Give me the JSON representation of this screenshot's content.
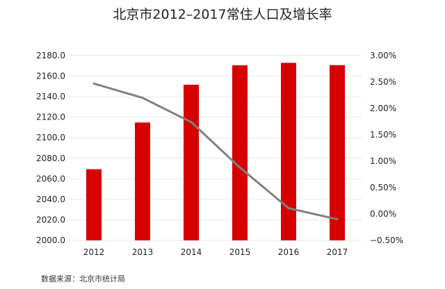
{
  "colors": {
    "bar": "#d60000",
    "line": "#808080",
    "grid": "#e6e6e6",
    "text": "#222222"
  },
  "chart_data": {
    "type": "bar",
    "title": "北京市2012–2017常住人口及增长率",
    "source": "数据来源：北京市统计局",
    "categories": [
      "2012",
      "2013",
      "2014",
      "2015",
      "2016",
      "2017"
    ],
    "series": [
      {
        "type": "bar",
        "axis": "left",
        "values": [
          2069.3,
          2114.8,
          2151.6,
          2170.5,
          2172.9,
          2170.7
        ]
      },
      {
        "type": "line",
        "axis": "right",
        "values": [
          2.47,
          2.2,
          1.74,
          0.88,
          0.11,
          -0.1
        ]
      }
    ],
    "y_left": {
      "ylim": [
        2000,
        2180
      ],
      "ticks": [
        2000,
        2020,
        2040,
        2060,
        2080,
        2100,
        2120,
        2140,
        2160,
        2180
      ],
      "tick_labels": [
        "2000.0",
        "2020.0",
        "2040.0",
        "2060.0",
        "2080.0",
        "2100.0",
        "2120.0",
        "2140.0",
        "2160.0",
        "2180.0"
      ]
    },
    "y_right": {
      "ylim": [
        -0.5,
        3.0
      ],
      "ticks": [
        -0.5,
        0,
        0.5,
        1.0,
        1.5,
        2.0,
        2.5,
        3.0
      ],
      "tick_labels": [
        "−0.50%",
        "0.00%",
        "0.50%",
        "1.00%",
        "1.50%",
        "2.00%",
        "2.50%",
        "3.00%"
      ]
    },
    "grid": true
  }
}
